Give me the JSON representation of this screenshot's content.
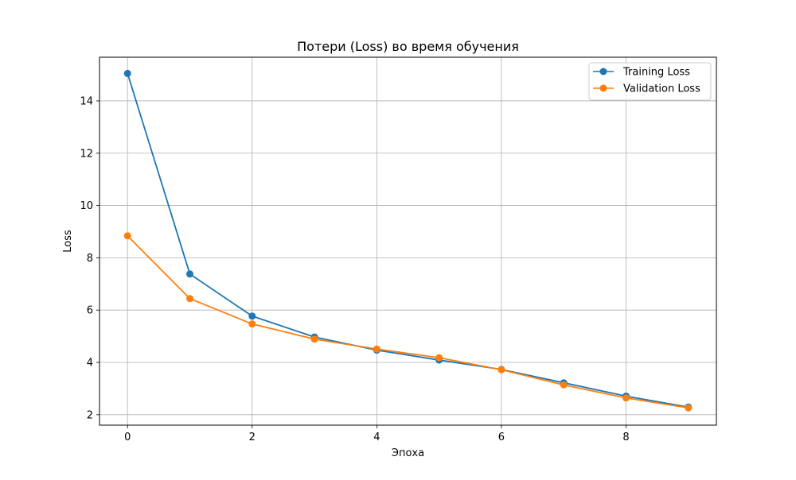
{
  "chart_data": {
    "type": "line",
    "title": "Потери (Loss) во время обучения",
    "xlabel": "Эпоха",
    "ylabel": "Loss",
    "xlim": [
      -0.45,
      9.45
    ],
    "ylim": [
      1.6,
      15.67
    ],
    "xticks": [
      0,
      2,
      4,
      6,
      8
    ],
    "yticks": [
      2,
      4,
      6,
      8,
      10,
      12,
      14
    ],
    "grid": true,
    "legend_position": "top-right",
    "x": [
      0,
      1,
      2,
      3,
      4,
      5,
      6,
      7,
      8,
      9
    ],
    "series": [
      {
        "name": "Training Loss",
        "color": "#1f77b4",
        "marker": "circle",
        "values": [
          15.05,
          7.38,
          5.77,
          4.97,
          4.47,
          4.09,
          3.73,
          3.22,
          2.71,
          2.29
        ]
      },
      {
        "name": "Validation Loss",
        "color": "#ff7f0e",
        "marker": "circle",
        "values": [
          8.84,
          6.44,
          5.47,
          4.89,
          4.51,
          4.18,
          3.72,
          3.14,
          2.64,
          2.26
        ]
      }
    ]
  }
}
